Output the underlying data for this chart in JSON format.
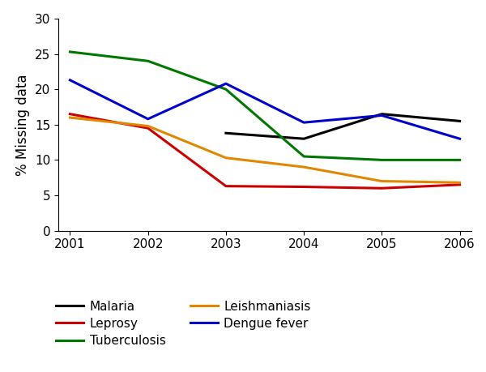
{
  "years": [
    2001,
    2002,
    2003,
    2004,
    2005,
    2006
  ],
  "series": {
    "Malaria": [
      null,
      null,
      13.8,
      13.0,
      16.5,
      15.5
    ],
    "Leprosy": [
      16.5,
      14.5,
      6.3,
      6.2,
      6.0,
      6.5
    ],
    "Tuberculosis": [
      25.3,
      24.0,
      20.0,
      10.5,
      10.0,
      10.0
    ],
    "Leishmaniasis": [
      16.0,
      14.8,
      10.3,
      9.0,
      7.0,
      6.8
    ],
    "Dengue fever": [
      21.3,
      15.8,
      20.8,
      15.3,
      16.3,
      13.0
    ]
  },
  "colors": {
    "Malaria": "#000000",
    "Leprosy": "#cc0000",
    "Tuberculosis": "#007700",
    "Leishmaniasis": "#e08800",
    "Dengue fever": "#0000cc"
  },
  "ylabel": "% Missing data",
  "ylim": [
    0,
    30
  ],
  "yticks": [
    0,
    5,
    10,
    15,
    20,
    25,
    30
  ],
  "xlim": [
    2001,
    2006
  ],
  "xticks": [
    2001,
    2002,
    2003,
    2004,
    2005,
    2006
  ],
  "display_order": [
    "Malaria",
    "Leprosy",
    "Tuberculosis",
    "Leishmaniasis",
    "Dengue fever"
  ],
  "linewidth": 2.2,
  "background_color": "#ffffff",
  "tick_fontsize": 11,
  "ylabel_fontsize": 12,
  "legend_fontsize": 11
}
